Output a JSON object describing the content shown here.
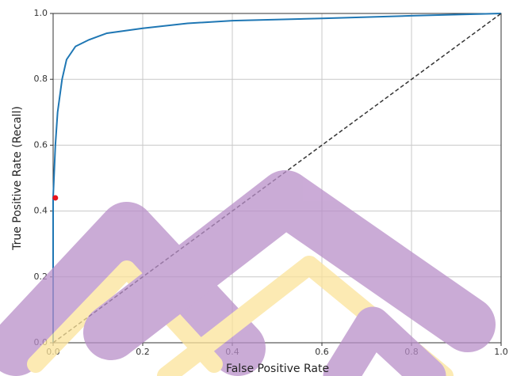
{
  "chart_data": {
    "type": "line",
    "xlabel": "False Positive Rate",
    "ylabel": "True Positive Rate (Recall)",
    "xlim": [
      0,
      1
    ],
    "ylim": [
      0,
      1
    ],
    "xticks": [
      {
        "value": 0,
        "label": "0.0"
      },
      0.2,
      0.4,
      0.6,
      0.8,
      {
        "value": 1,
        "label": "1.0"
      }
    ],
    "yticks": [
      {
        "value": 0,
        "label": "0.0"
      },
      0.2,
      0.4,
      0.6,
      0.8,
      {
        "value": 1,
        "label": "1.0"
      }
    ],
    "grid": true,
    "series": [
      {
        "color": "#1f77b4",
        "x": [
          0,
          0,
          0.005,
          0.01,
          0.02,
          0.03,
          0.05,
          0.08,
          0.12,
          0.2,
          0.3,
          0.4,
          0.6,
          0.8,
          1
        ],
        "values": [
          0,
          0.44,
          0.6,
          0.7,
          0.8,
          0.86,
          0.9,
          0.92,
          0.94,
          0.955,
          0.97,
          0.978,
          0.985,
          0.993,
          1
        ]
      },
      {
        "color": "#333333",
        "dash": true,
        "x": [
          0,
          1
        ],
        "values": [
          0,
          1
        ]
      },
      {
        "color": "#e8141c",
        "marker": true,
        "x": [
          0.005
        ],
        "values": [
          0.44
        ]
      }
    ]
  }
}
